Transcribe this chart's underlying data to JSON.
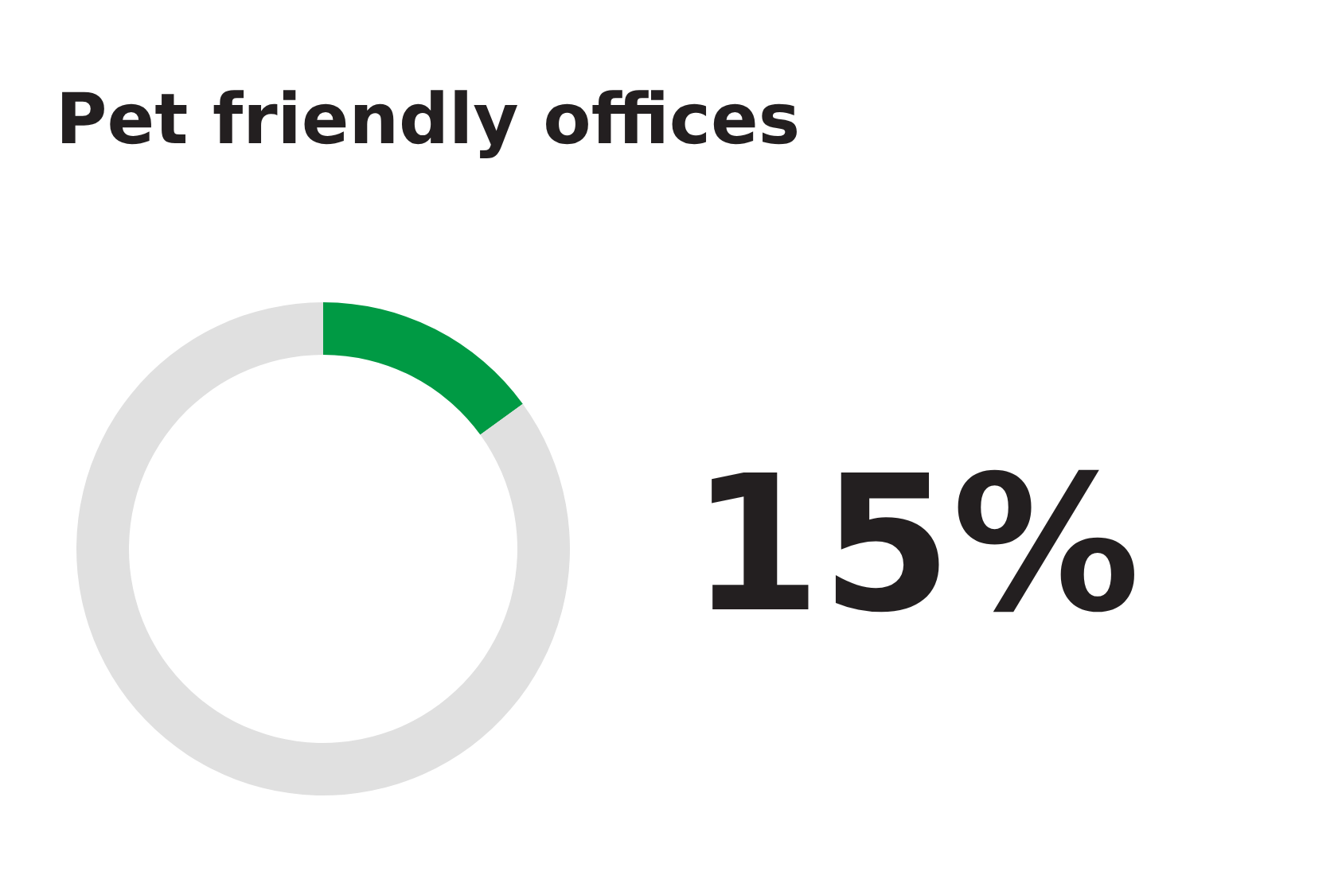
{
  "chart_data": {
    "type": "donut",
    "title": "Pet friendly offices",
    "categories": [
      null,
      null
    ],
    "values": [
      15,
      85
    ],
    "colors": [
      "#009a44",
      "#e0e0e0"
    ],
    "annotations": [
      "15%"
    ]
  }
}
